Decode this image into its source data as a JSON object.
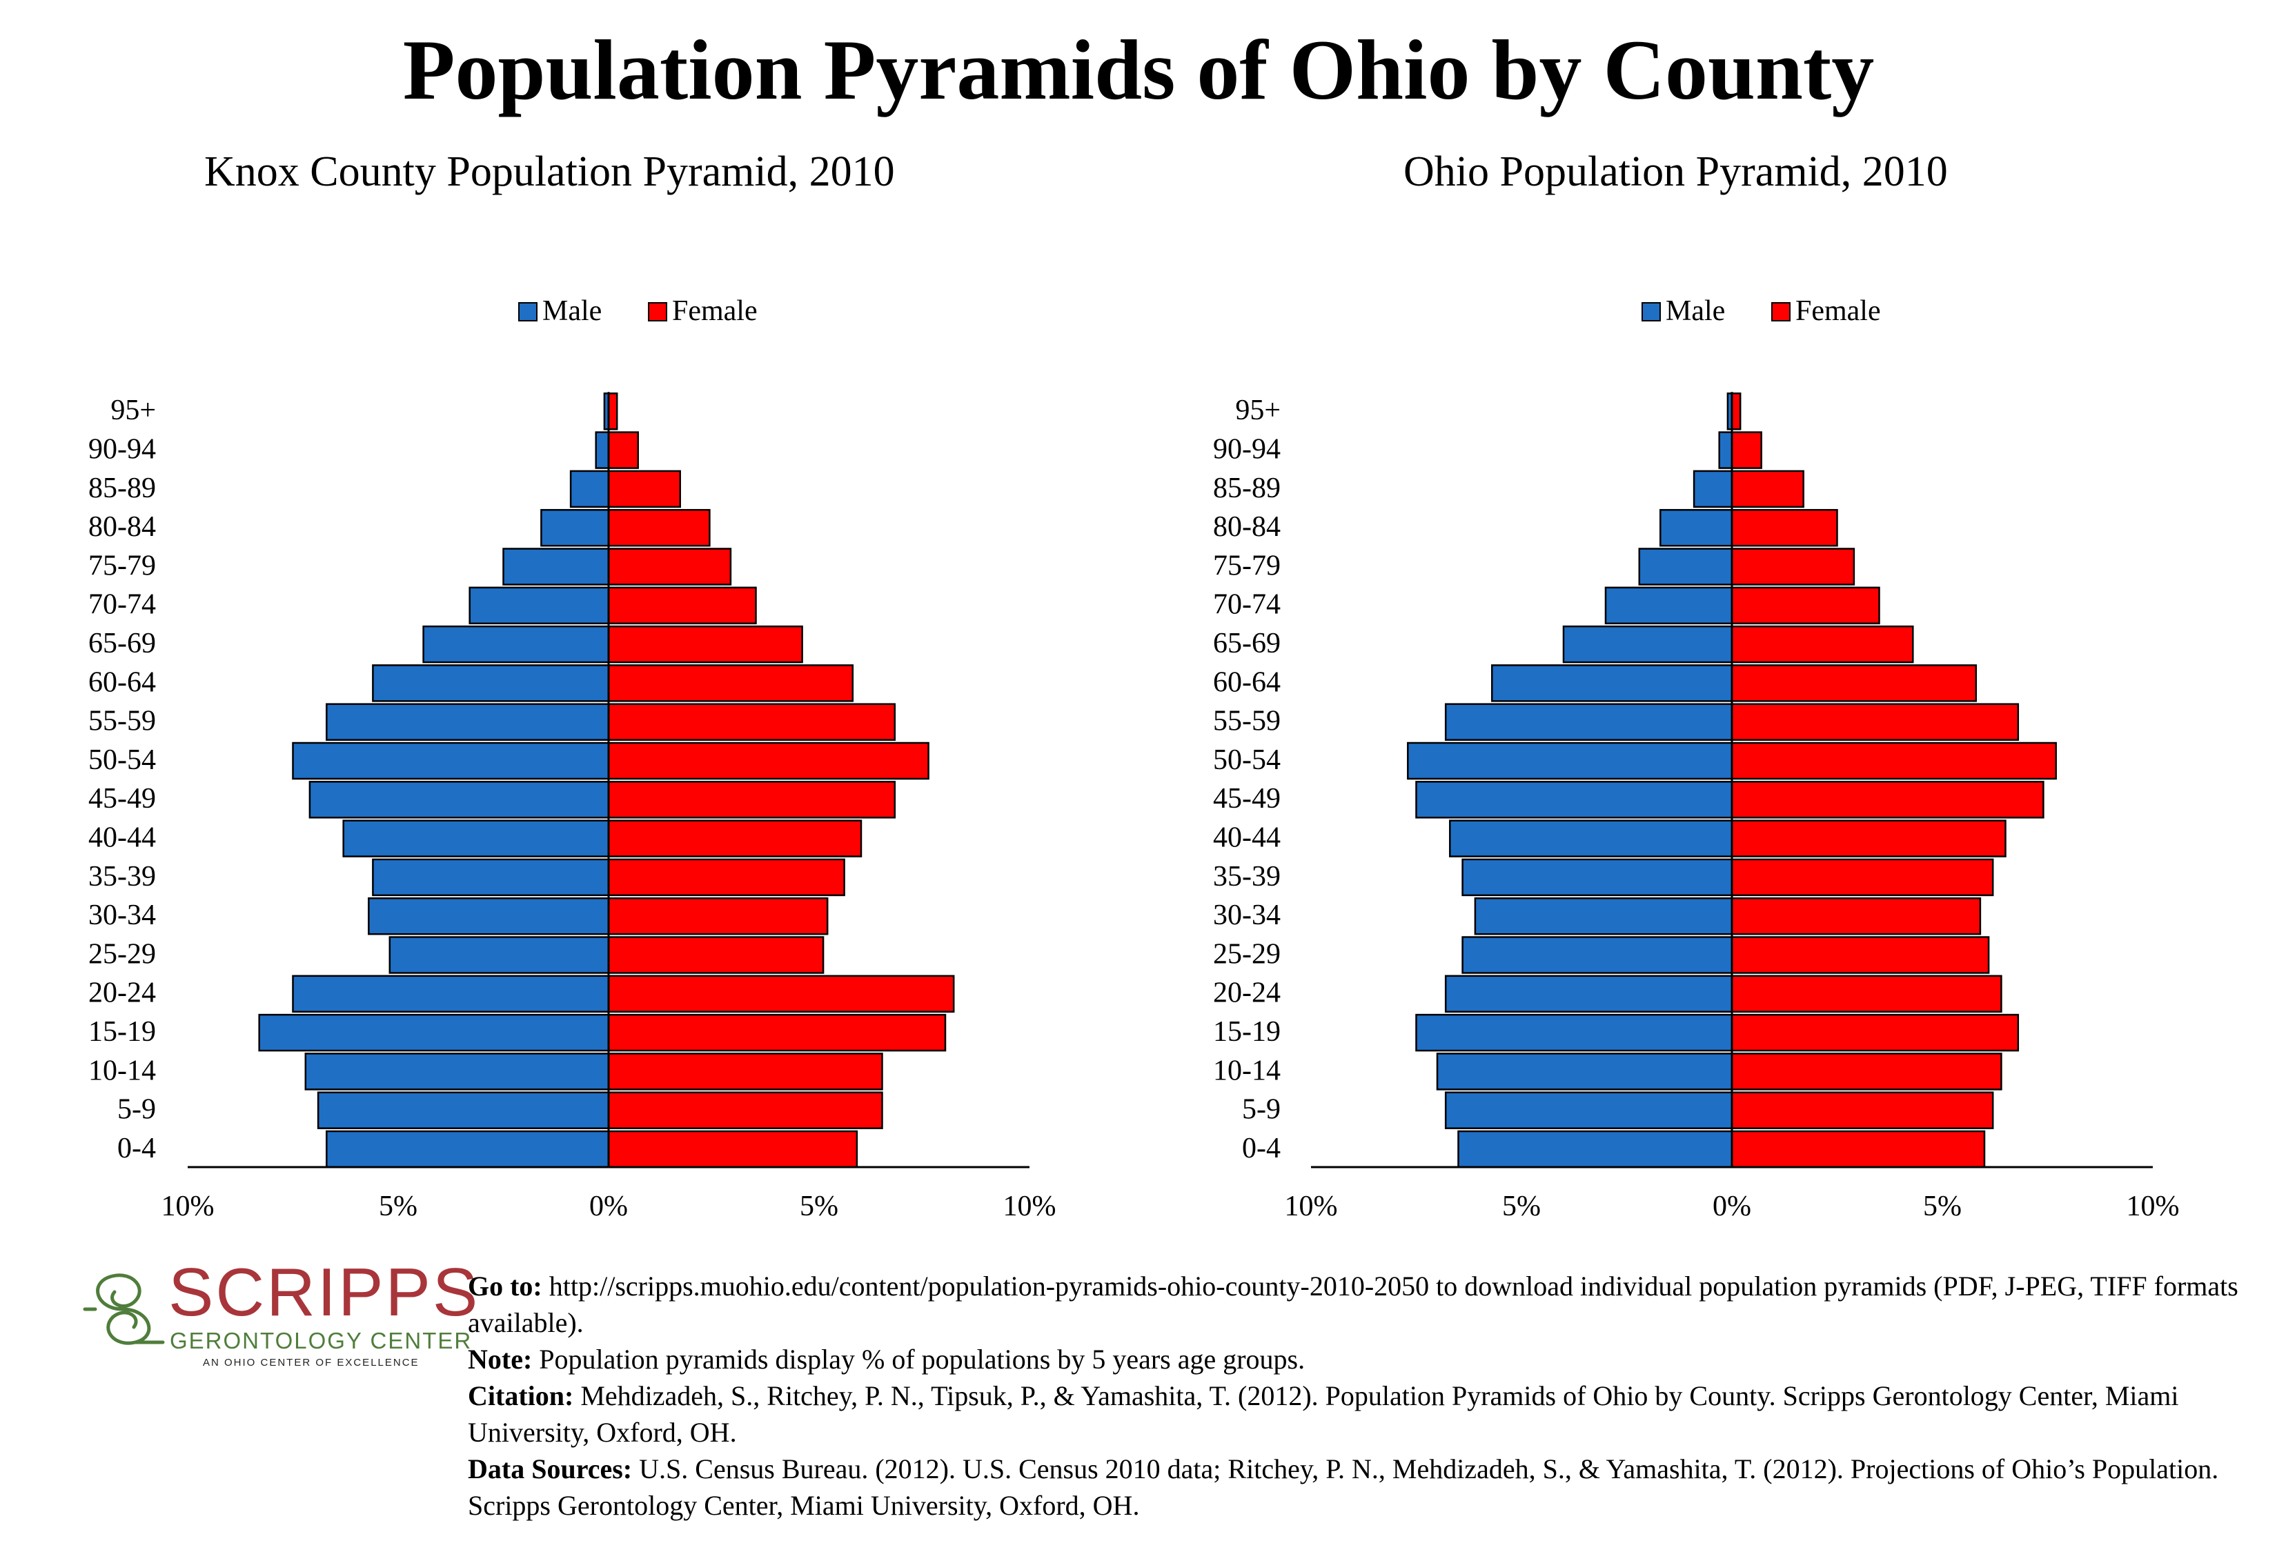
{
  "title": "Population Pyramids of Ohio by County",
  "colors": {
    "male": "#1f6fc5",
    "female": "#ff0000",
    "axis": "#000000"
  },
  "legend": {
    "male": "Male",
    "female": "Female",
    "position": "top-center"
  },
  "chart_data": [
    {
      "type": "bar",
      "orientation": "horizontal-pyramid",
      "title": "Knox County Population Pyramid, 2010",
      "categories": [
        "0-4",
        "5-9",
        "10-14",
        "15-19",
        "20-24",
        "25-29",
        "30-34",
        "35-39",
        "40-44",
        "45-49",
        "50-54",
        "55-59",
        "60-64",
        "65-69",
        "70-74",
        "75-79",
        "80-84",
        "85-89",
        "90-94",
        "95+"
      ],
      "series": [
        {
          "name": "Male",
          "values": [
            6.7,
            6.9,
            7.2,
            8.3,
            7.5,
            5.2,
            5.7,
            5.6,
            6.3,
            7.1,
            7.5,
            6.7,
            5.6,
            4.4,
            3.3,
            2.5,
            1.6,
            0.9,
            0.3,
            0.1
          ]
        },
        {
          "name": "Female",
          "values": [
            5.9,
            6.5,
            6.5,
            8.0,
            8.2,
            5.1,
            5.2,
            5.6,
            6.0,
            6.8,
            7.6,
            6.8,
            5.8,
            4.6,
            3.5,
            2.9,
            2.4,
            1.7,
            0.7,
            0.2
          ]
        }
      ],
      "xlim": [
        -10,
        10
      ],
      "xticks": [
        "10%",
        "5%",
        "0%",
        "5%",
        "10%"
      ]
    },
    {
      "type": "bar",
      "orientation": "horizontal-pyramid",
      "title": "Ohio Population Pyramid, 2010",
      "categories": [
        "0-4",
        "5-9",
        "10-14",
        "15-19",
        "20-24",
        "25-29",
        "30-34",
        "35-39",
        "40-44",
        "45-49",
        "50-54",
        "55-59",
        "60-64",
        "65-69",
        "70-74",
        "75-79",
        "80-84",
        "85-89",
        "90-94",
        "95+"
      ],
      "series": [
        {
          "name": "Male",
          "values": [
            6.5,
            6.8,
            7.0,
            7.5,
            6.8,
            6.4,
            6.1,
            6.4,
            6.7,
            7.5,
            7.7,
            6.8,
            5.7,
            4.0,
            3.0,
            2.2,
            1.7,
            0.9,
            0.3,
            0.1
          ]
        },
        {
          "name": "Female",
          "values": [
            6.0,
            6.2,
            6.4,
            6.8,
            6.4,
            6.1,
            5.9,
            6.2,
            6.5,
            7.4,
            7.7,
            6.8,
            5.8,
            4.3,
            3.5,
            2.9,
            2.5,
            1.7,
            0.7,
            0.2
          ]
        }
      ],
      "xlim": [
        -10,
        10
      ],
      "xticks": [
        "10%",
        "5%",
        "0%",
        "5%",
        "10%"
      ]
    }
  ],
  "logo": {
    "name": "SCRIPPS",
    "line1": "GERONTOLOGY CENTER",
    "line2": "AN OHIO CENTER OF EXCELLENCE",
    "colors": {
      "name": "#a8353a",
      "sub": "#4f7d3b"
    }
  },
  "notes": {
    "goto_label": "Go to:",
    "goto_text": " http://scripps.muohio.edu/content/population-pyramids-ohio-county-2010-2050 to download individual population pyramids (PDF, J-PEG, TIFF formats available).",
    "note_label": "Note:",
    "note_text": " Population pyramids display % of populations by 5 years age groups.",
    "citation_label": "Citation:",
    "citation_text": " Mehdizadeh, S., Ritchey, P. N., Tipsuk, P., & Yamashita, T. (2012). Population Pyramids of Ohio by County. Scripps Gerontology Center, Miami University, Oxford, OH.",
    "sources_label": "Data Sources:",
    "sources_text": " U.S. Census Bureau. (2012). U.S. Census 2010 data; Ritchey, P. N., Mehdizadeh, S., & Yamashita, T. (2012). Projections of Ohio’s Population. Scripps Gerontology Center, Miami University, Oxford, OH."
  }
}
